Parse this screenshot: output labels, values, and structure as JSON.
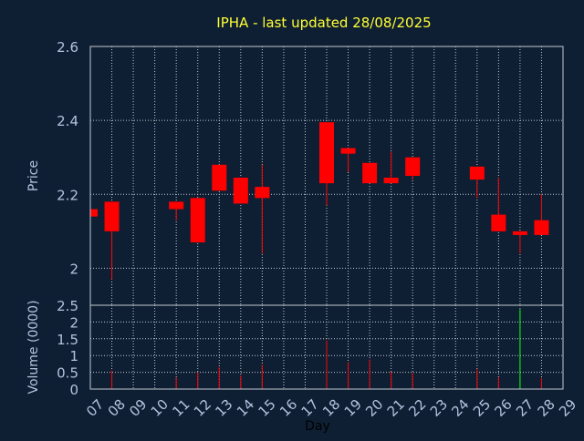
{
  "chart_data": [
    {
      "type": "candlestick",
      "title": "IPHA - last updated 28/08/2025",
      "ylabel": "Price",
      "ylim": [
        1.9,
        2.6
      ],
      "yticks": [
        "2",
        "2.2",
        "2.4",
        "2.6"
      ],
      "ytick_values": [
        2.0,
        2.2,
        2.4,
        2.6
      ],
      "grid": true,
      "x": [
        "07",
        "08",
        "11",
        "12",
        "13",
        "14",
        "15",
        "18",
        "19",
        "20",
        "21",
        "22",
        "25",
        "26",
        "27",
        "28"
      ],
      "open": [
        2.16,
        2.18,
        2.18,
        2.19,
        2.28,
        2.245,
        2.22,
        2.395,
        2.325,
        2.285,
        2.245,
        2.3,
        2.275,
        2.145,
        2.1,
        2.13
      ],
      "high": [
        2.16,
        2.18,
        2.18,
        2.19,
        2.28,
        2.245,
        2.28,
        2.395,
        2.325,
        2.285,
        2.315,
        2.3,
        2.275,
        2.245,
        2.1,
        2.2
      ],
      "low": [
        2.14,
        1.97,
        2.13,
        2.07,
        2.21,
        2.175,
        2.04,
        2.17,
        2.26,
        2.23,
        2.23,
        2.24,
        2.19,
        2.1,
        2.04,
        2.09
      ],
      "close": [
        2.14,
        2.1,
        2.16,
        2.07,
        2.21,
        2.175,
        2.19,
        2.23,
        2.31,
        2.23,
        2.23,
        2.25,
        2.24,
        2.1,
        2.09,
        2.09
      ],
      "colors": {
        "down": "#ff0000",
        "up": "#00ff00"
      }
    },
    {
      "type": "bar",
      "ylabel": "Volume (0000)",
      "xlabel": "Day",
      "ylim": [
        0,
        2.5
      ],
      "yticks": [
        "0",
        "0.5",
        "1",
        "1.5",
        "2",
        "2.5"
      ],
      "ytick_values": [
        0,
        0.5,
        1,
        1.5,
        2,
        2.5
      ],
      "x": [
        "07",
        "08",
        "11",
        "12",
        "13",
        "14",
        "15",
        "18",
        "19",
        "20",
        "21",
        "22",
        "25",
        "26",
        "27",
        "28"
      ],
      "values": [
        0.1,
        0.55,
        0.35,
        0.5,
        0.65,
        0.4,
        0.72,
        1.45,
        0.8,
        0.88,
        0.52,
        0.48,
        0.6,
        0.35,
        2.38,
        0.33
      ],
      "bar_colors": [
        "#ff0000",
        "#ff0000",
        "#ff0000",
        "#ff0000",
        "#ff0000",
        "#ff0000",
        "#ff0000",
        "#ff0000",
        "#ff0000",
        "#ff0000",
        "#ff0000",
        "#ff0000",
        "#ff0000",
        "#ff0000",
        "#00ff00",
        "#ff0000"
      ]
    }
  ],
  "xaxis": {
    "tick_labels": [
      "07",
      "08",
      "09",
      "10",
      "11",
      "12",
      "13",
      "14",
      "15",
      "16",
      "17",
      "18",
      "19",
      "20",
      "21",
      "22",
      "23",
      "24",
      "25",
      "26",
      "27",
      "28",
      "29"
    ]
  },
  "colors": {
    "background": "#0f1f33",
    "axis_text": "#b0c4de",
    "title": "#ffff33",
    "grid": "#c0c8d0"
  }
}
